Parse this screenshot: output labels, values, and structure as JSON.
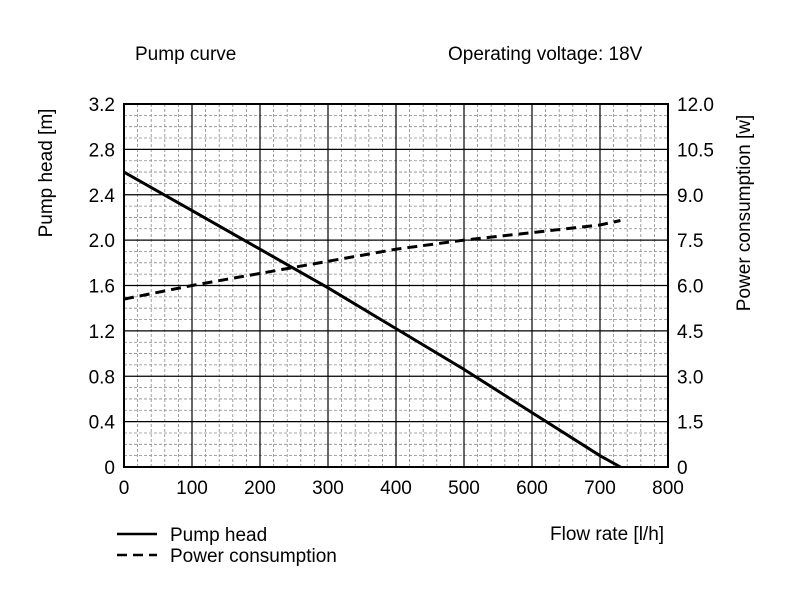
{
  "chart_data": {
    "type": "line",
    "title": "Pump curve",
    "subtitle": "Operating voltage: 18V",
    "xlabel": "Flow rate [l/h]",
    "ylabel": "Pump head [m]",
    "y2label": "Power consumption [w]",
    "xlim": [
      0,
      800
    ],
    "ylim": [
      0,
      3.2
    ],
    "y2lim": [
      0,
      12
    ],
    "x_ticks": [
      "0",
      "100",
      "200",
      "300",
      "400",
      "500",
      "600",
      "700",
      "800"
    ],
    "y_ticks": [
      "0",
      "0.4",
      "0.8",
      "1.2",
      "1.6",
      "2.0",
      "2.4",
      "2.8",
      "3.2"
    ],
    "y2_ticks": [
      "0",
      "1.5",
      "3.0",
      "4.5",
      "6.0",
      "7.5",
      "9.0",
      "10.5",
      "12.0"
    ],
    "grid": true,
    "legend_position": "bottom-left",
    "series": [
      {
        "name": "Pump head",
        "axis": "left",
        "style": "solid",
        "x": [
          0,
          100,
          200,
          300,
          400,
          500,
          600,
          700,
          730
        ],
        "y": [
          2.6,
          2.26,
          1.92,
          1.58,
          1.22,
          0.86,
          0.48,
          0.1,
          0.0
        ]
      },
      {
        "name": "Power consumption",
        "axis": "right",
        "style": "dashed",
        "x": [
          0,
          100,
          200,
          300,
          400,
          500,
          600,
          700,
          730
        ],
        "y": [
          5.55,
          6.0,
          6.4,
          6.8,
          7.2,
          7.5,
          7.75,
          8.0,
          8.15
        ]
      }
    ]
  }
}
